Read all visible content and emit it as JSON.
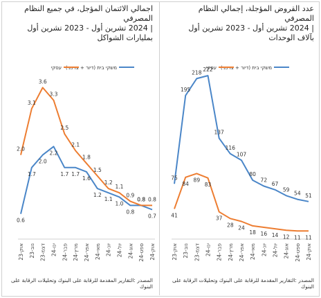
{
  "colors": {
    "housing": "#4a86c8",
    "business": "#ed7d31"
  },
  "left": {
    "title": [
      "اجمالي الائتمان المؤجل، في جميع النظام",
      "المصرفي",
      "| 2024 تشرين أول - 2023 تشرين أول",
      "بمليارات الشواكل"
    ],
    "source": "المصدر :التقارير المقدمة للرقابة على البنوك وتحليلات الرقابة على البنوك"
  },
  "right": {
    "title": [
      "عدد القروض المؤجلة، إجمالي النظام",
      "المصرفي",
      "| 2024 تشرين أول - 2023 تشرين أول",
      "بآلاف الوحدات"
    ],
    "source": "المصدر :التقارير المقدمة للرقابة على البنوك وتحليلات الرقابة على البنوك"
  },
  "chart_data": [
    {
      "type": "line",
      "title": "اجمالي الائتمان المؤجل، في جميع النظام المصرفي | 2024 تشرين أول - 2023 تشرين أول بمليارات الشواكل",
      "categories": [
        "אוק-23",
        "נוב-23",
        "דצמ-23",
        "ינו-24",
        "פבר-24",
        "מרץ-24",
        "אפר-24",
        "מאי-24",
        "יונ-24",
        "יול-24",
        "אוג-24",
        "ספט-24",
        "אוק-24"
      ],
      "series": [
        {
          "name": "משקי בית (דיור + צרכני)",
          "color": "#4a86c8",
          "values": [
            0.6,
            1.7,
            2.0,
            2.2,
            1.7,
            1.7,
            1.6,
            1.2,
            1.1,
            1.0,
            0.8,
            0.8,
            0.7
          ]
        },
        {
          "name": "עסקי",
          "color": "#ed7d31",
          "values": [
            2.0,
            3.1,
            3.6,
            3.3,
            2.5,
            2.1,
            1.8,
            1.5,
            1.2,
            1.1,
            0.9,
            0.8,
            0.8
          ]
        }
      ],
      "ylim": [
        0,
        4.2
      ]
    },
    {
      "type": "line",
      "title": "عدد القروض المؤجلة، إجمالي النظام المصرفي | 2024 تشرين أول - 2023 تشرين أول بآلاف الوحدات",
      "categories": [
        "אוק-23",
        "נוב-23",
        "דצמ-23",
        "ינו-24",
        "פבר-24",
        "מרץ-24",
        "אפר-24",
        "מאי-24",
        "יונ-24",
        "יול-24",
        "אוג-24",
        "ספט-24",
        "אוק-24"
      ],
      "series": [
        {
          "name": "משקי בית (דיור + צרכני)",
          "color": "#4a86c8",
          "values": [
            75,
            195,
            218,
            222,
            137,
            116,
            107,
            80,
            72,
            67,
            59,
            54,
            51
          ]
        },
        {
          "name": "עסקי",
          "color": "#ed7d31",
          "values": [
            41,
            84,
            89,
            83,
            37,
            28,
            24,
            18,
            16,
            14,
            12,
            11,
            11
          ]
        }
      ],
      "ylim": [
        0,
        240
      ]
    }
  ]
}
